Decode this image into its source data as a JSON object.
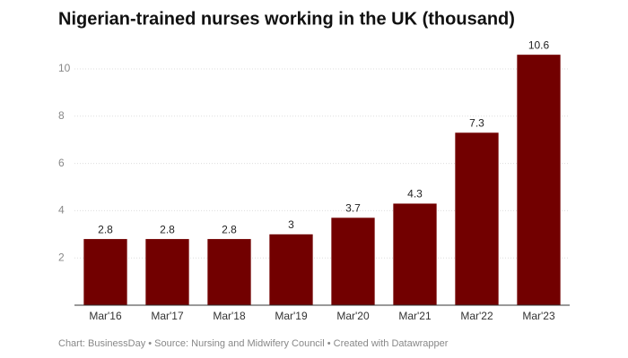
{
  "chart_data": {
    "type": "bar",
    "title": "Nigerian-trained nurses working in the UK (thousand)",
    "categories": [
      "Mar'16",
      "Mar'17",
      "Mar'18",
      "Mar'19",
      "Mar'20",
      "Mar'21",
      "Mar'22",
      "Mar'23"
    ],
    "values": [
      2.8,
      2.8,
      2.8,
      3,
      3.7,
      4.3,
      7.3,
      10.6
    ],
    "color": "#720000",
    "ylim": [
      0,
      11
    ],
    "yticks": [
      2,
      4,
      6,
      8,
      10
    ],
    "grid": true,
    "source": "Chart: BusinessDay • Source: Nursing and Midwifery Council • Created with Datawrapper"
  }
}
